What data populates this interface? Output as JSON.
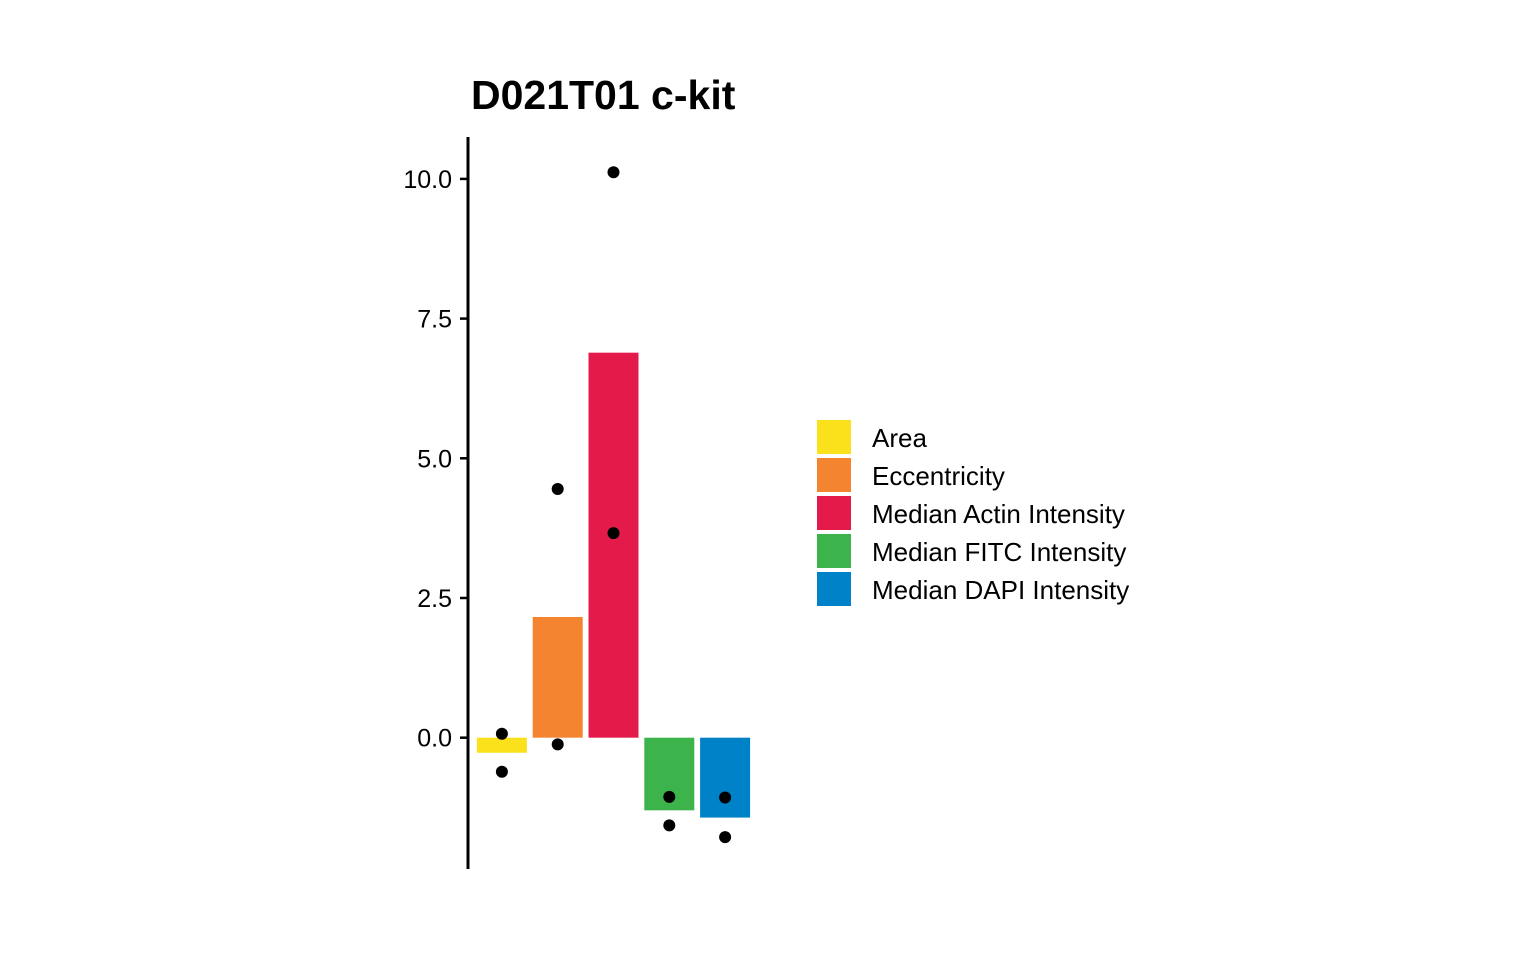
{
  "chart_data": {
    "type": "bar",
    "title": "D021T01 c-kit",
    "xlabel": "",
    "ylabel": "",
    "categories": [
      "Area",
      "Eccentricity",
      "Median Actin Intensity",
      "Median FITC Intensity",
      "Median DAPI Intensity"
    ],
    "values": [
      -0.27,
      2.16,
      6.89,
      -1.3,
      -1.43
    ],
    "colors": [
      "#FBE11C",
      "#F58431",
      "#E41B4A",
      "#3CB44B",
      "#0082C8"
    ],
    "points": [
      [
        0.07,
        -0.61
      ],
      [
        4.45,
        -0.12
      ],
      [
        10.12,
        3.66
      ],
      [
        -1.06,
        -1.57
      ],
      [
        -1.07,
        -1.78
      ]
    ],
    "ylim": [
      -2.35,
      10.75
    ],
    "yticks": [
      0.0,
      2.5,
      5.0,
      7.5,
      10.0
    ],
    "ytick_labels": [
      "0.0",
      "2.5",
      "5.0",
      "7.5",
      "10.0"
    ],
    "grid": false,
    "legend": {
      "position": "right",
      "entries": [
        "Area",
        "Eccentricity",
        "Median Actin Intensity",
        "Median FITC Intensity",
        "Median DAPI Intensity"
      ]
    }
  }
}
